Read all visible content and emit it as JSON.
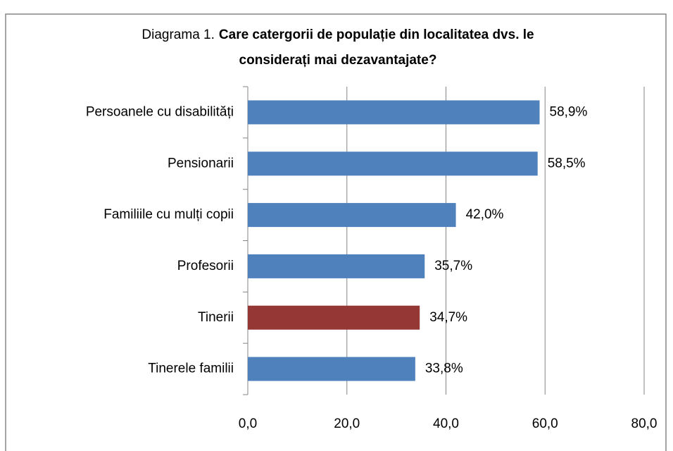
{
  "chart_data": {
    "type": "barh",
    "title_parts": [
      "Diagrama 1.",
      "Care catergorii de populație din localitatea dvs. le",
      "considerați mai dezavantajate?"
    ],
    "categories": [
      "Persoanele cu disabilități",
      "Pensionarii",
      "Familiile cu mulți copii",
      "Profesorii",
      "Tinerii",
      "Tinerele familii"
    ],
    "values": [
      58.9,
      58.5,
      42.0,
      35.7,
      34.7,
      33.8
    ],
    "value_labels": [
      "58,9%",
      "58,5%",
      "42,0%",
      "35,7%",
      "34,7%",
      "33,8%"
    ],
    "colors": [
      "#4f81bd",
      "#4f81bd",
      "#4f81bd",
      "#4f81bd",
      "#953735",
      "#4f81bd"
    ],
    "xlim": [
      0,
      80
    ],
    "xticks": [
      {
        "value": 0,
        "label": "0,0"
      },
      {
        "value": 20,
        "label": "20,0"
      },
      {
        "value": 40,
        "label": "40,0"
      },
      {
        "value": 60,
        "label": "60,0"
      },
      {
        "value": 80,
        "label": "80,0"
      }
    ],
    "grid": true
  }
}
